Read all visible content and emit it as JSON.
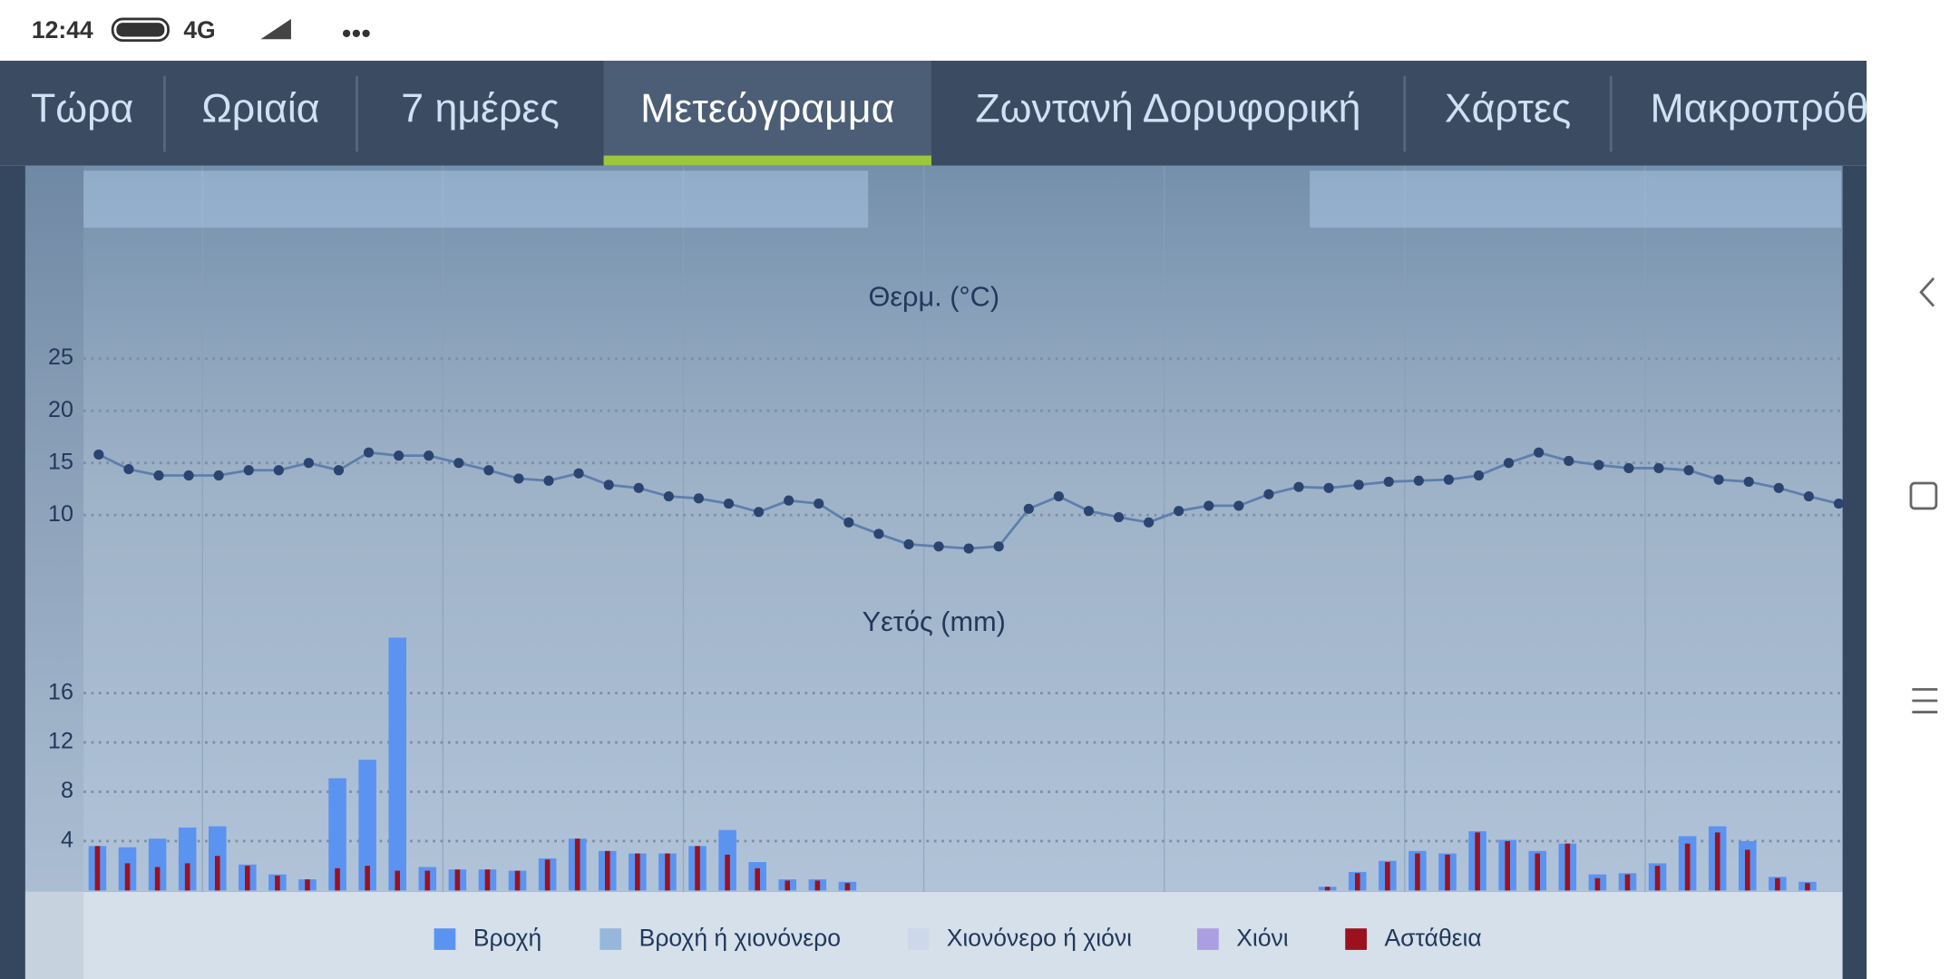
{
  "status_bar": {
    "time": "12:44",
    "network": "4G"
  },
  "tabs": [
    "Τώρα",
    "Ωριαία",
    "7 ημέρες",
    "Μετεώγραμμα",
    "Ζωντανή Δορυφορική",
    "Χάρτες",
    "Μακροπρόθ"
  ],
  "active_tab": 3,
  "chart_data": [
    {
      "type": "line",
      "title": "Θερμ. (°C)",
      "color": "#2b4470",
      "values": [
        15.8,
        14.4,
        13.8,
        13.8,
        13.8,
        14.3,
        14.3,
        15.0,
        14.3,
        16.0,
        15.7,
        15.7,
        15.0,
        14.3,
        13.5,
        13.3,
        14.0,
        12.9,
        12.6,
        11.8,
        11.6,
        11.1,
        10.3,
        11.4,
        11.1,
        9.3,
        8.2,
        7.2,
        7.0,
        6.8,
        7.0,
        10.6,
        11.8,
        10.4,
        9.8,
        9.3,
        10.4,
        10.9,
        10.9,
        12.0,
        12.7,
        12.6,
        12.9,
        13.2,
        13.3,
        13.4,
        13.8,
        15.0,
        16.0,
        15.2,
        14.8,
        14.5,
        14.5,
        14.3,
        13.4,
        13.2,
        12.6,
        11.8,
        11.1
      ],
      "ylim": [
        5,
        28
      ],
      "yticks": [
        10,
        15,
        20,
        25
      ],
      "grid": true
    },
    {
      "type": "bar",
      "title": "Υετός (mm)",
      "series": [
        {
          "name": "Βροχή",
          "color": "#5b93f0",
          "values": [
            3.6,
            3.5,
            4.2,
            5.1,
            5.2,
            2.1,
            1.3,
            0.9,
            9.1,
            10.6,
            20.5,
            1.9,
            1.7,
            1.7,
            1.6,
            2.6,
            4.2,
            3.2,
            3.0,
            3.0,
            3.6,
            4.9,
            2.3,
            0.9,
            0.9,
            0.7,
            0,
            0,
            0,
            0,
            0,
            0,
            0,
            0,
            0,
            0,
            0,
            0,
            0,
            0,
            0,
            0.3,
            1.5,
            2.4,
            3.2,
            3.0,
            4.8,
            4.1,
            3.2,
            3.8,
            1.3,
            1.4,
            2.2,
            4.4,
            5.2,
            4.0,
            1.1,
            0.7,
            0
          ]
        },
        {
          "name": "Βροχή ή χιονόνερο",
          "color": "#97b6dc",
          "values": [
            0,
            0,
            0,
            0,
            0,
            0,
            0,
            0,
            0,
            0,
            0,
            0,
            0,
            0,
            0,
            0,
            0,
            0,
            0,
            0,
            0,
            0,
            0,
            0,
            0,
            0,
            0,
            0,
            0,
            0,
            0,
            0,
            0,
            0,
            0,
            0,
            0,
            0,
            0,
            0,
            0,
            0,
            0,
            0,
            0,
            0,
            0,
            0,
            0,
            0,
            0,
            0,
            0,
            0,
            0,
            0,
            0,
            0,
            0
          ]
        },
        {
          "name": "Χιονόνερο ή χιόνι",
          "color": "#cdd9ea",
          "values": [
            0,
            0,
            0,
            0,
            0,
            0,
            0,
            0,
            0,
            0,
            0,
            0,
            0,
            0,
            0,
            0,
            0,
            0,
            0,
            0,
            0,
            0,
            0,
            0,
            0,
            0,
            0,
            0,
            0,
            0,
            0,
            0,
            0,
            0,
            0,
            0,
            0,
            0,
            0,
            0,
            0,
            0,
            0,
            0,
            0,
            0,
            0,
            0,
            0,
            0,
            0,
            0,
            0,
            0,
            0,
            0,
            0,
            0,
            0
          ]
        },
        {
          "name": "Χιόνι",
          "color": "#ab9ee2",
          "values": [
            0,
            0,
            0,
            0,
            0,
            0,
            0,
            0,
            0,
            0,
            0,
            0,
            0,
            0,
            0,
            0,
            0,
            0,
            0,
            0,
            0,
            0,
            0,
            0,
            0,
            0,
            0,
            0,
            0,
            0,
            0,
            0,
            0,
            0,
            0,
            0,
            0,
            0,
            0,
            0,
            0,
            0,
            0,
            0,
            0,
            0,
            0,
            0,
            0,
            0,
            0,
            0,
            0,
            0,
            0,
            0,
            0,
            0,
            0
          ]
        },
        {
          "name": "Αστάθεια",
          "color": "#9b111e",
          "values": [
            3.6,
            2.2,
            1.9,
            2.2,
            2.8,
            2.0,
            1.2,
            0.9,
            1.8,
            2.0,
            1.6,
            1.6,
            1.7,
            1.7,
            1.6,
            2.5,
            4.2,
            3.2,
            3.0,
            3.0,
            3.6,
            2.9,
            1.8,
            0.8,
            0.8,
            0.6,
            0,
            0,
            0,
            0,
            0,
            0,
            0,
            0,
            0,
            0,
            0,
            0,
            0,
            0,
            0,
            0.3,
            1.4,
            2.3,
            3.0,
            2.9,
            4.7,
            4.0,
            3.0,
            3.8,
            1.0,
            1.3,
            2.0,
            3.8,
            4.7,
            3.3,
            1.0,
            0.6,
            0
          ]
        }
      ],
      "ylim": [
        0,
        21
      ],
      "yticks": [
        4,
        8,
        12,
        16
      ],
      "grid": true
    }
  ]
}
